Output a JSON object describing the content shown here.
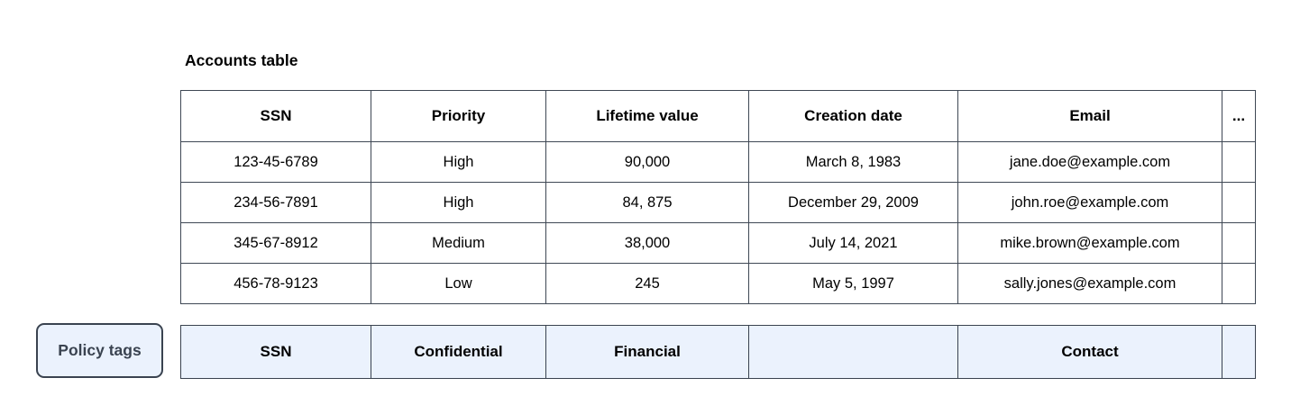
{
  "title": "Accounts table",
  "table": {
    "columns": [
      "SSN",
      "Priority",
      "Lifetime value",
      "Creation date",
      "Email",
      "..."
    ],
    "rows": [
      [
        "123-45-6789",
        "High",
        "90,000",
        "March 8, 1983",
        "jane.doe@example.com",
        ""
      ],
      [
        "234-56-7891",
        "High",
        "84, 875",
        "December 29, 2009",
        "john.roe@example.com",
        ""
      ],
      [
        "345-67-8912",
        "Medium",
        "38,000",
        "July 14, 2021",
        "mike.brown@example.com",
        ""
      ],
      [
        "456-78-9123",
        "Low",
        "245",
        "May 5, 1997",
        "sally.jones@example.com",
        ""
      ]
    ]
  },
  "policy": {
    "label": "Policy tags",
    "tags": [
      "SSN",
      "Confidential",
      "Financial",
      "",
      "Contact",
      ""
    ]
  },
  "colors": {
    "table_border": "#3e4754",
    "policy_fill": "#ebf2fd",
    "policy_label_text": "#3a4350",
    "text": "#000000",
    "background": "#ffffff"
  }
}
